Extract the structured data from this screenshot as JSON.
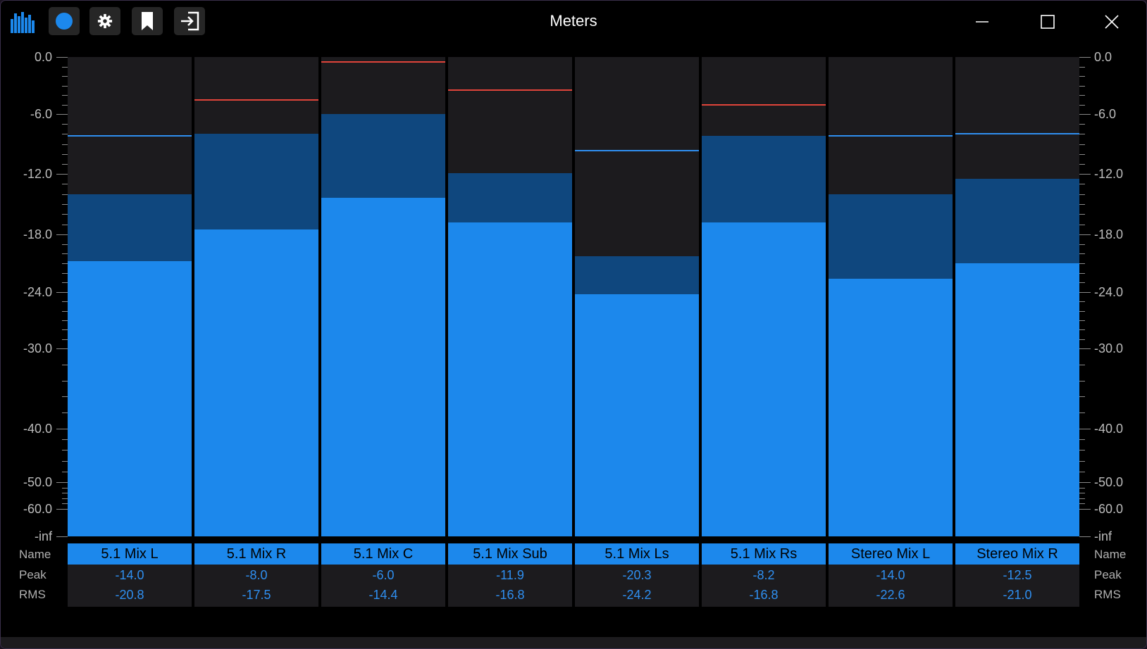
{
  "window": {
    "title": "Meters"
  },
  "toolbar": {
    "buttons": [
      {
        "name": "record-toggle",
        "icon": "circle-icon"
      },
      {
        "name": "settings",
        "icon": "gear-icon"
      },
      {
        "name": "bookmark",
        "icon": "bookmark-icon"
      },
      {
        "name": "exit",
        "icon": "sign-in-icon"
      }
    ]
  },
  "scale": {
    "labels": [
      "0.0",
      "-6.0",
      "-12.0",
      "-18.0",
      "-24.0",
      "-30.0",
      "-40.0",
      "-50.0",
      "-60.0",
      "-inf"
    ],
    "major_db": [
      0,
      -6,
      -12,
      -18,
      -24,
      -30,
      -40,
      -50,
      -60,
      -70
    ]
  },
  "rows": {
    "name": "Name",
    "peak": "Peak",
    "rms": "RMS"
  },
  "colors": {
    "peak": "#0f477e",
    "rms": "#1c88ec",
    "hold_over": "#e0443a",
    "hold_normal": "#2f8ff0"
  },
  "channels": [
    {
      "name": "5.1 Mix L",
      "peak": "-14.0",
      "rms": "-20.8",
      "hold": -8.2,
      "hold_color": "normal"
    },
    {
      "name": "5.1 Mix R",
      "peak": "-8.0",
      "rms": "-17.5",
      "hold": -4.5,
      "hold_color": "over"
    },
    {
      "name": "5.1 Mix C",
      "peak": "-6.0",
      "rms": "-14.4",
      "hold": -0.5,
      "hold_color": "over"
    },
    {
      "name": "5.1 Mix Sub",
      "peak": "-11.9",
      "rms": "-16.8",
      "hold": -3.5,
      "hold_color": "over"
    },
    {
      "name": "5.1 Mix Ls",
      "peak": "-20.3",
      "rms": "-24.2",
      "hold": -9.7,
      "hold_color": "normal"
    },
    {
      "name": "5.1 Mix Rs",
      "peak": "-8.2",
      "rms": "-16.8",
      "hold": -5.0,
      "hold_color": "over"
    },
    {
      "name": "Stereo Mix L",
      "peak": "-14.0",
      "rms": "-22.6",
      "hold": -8.2,
      "hold_color": "normal"
    },
    {
      "name": "Stereo Mix R",
      "peak": "-12.5",
      "rms": "-21.0",
      "hold": -8.0,
      "hold_color": "normal"
    }
  ]
}
